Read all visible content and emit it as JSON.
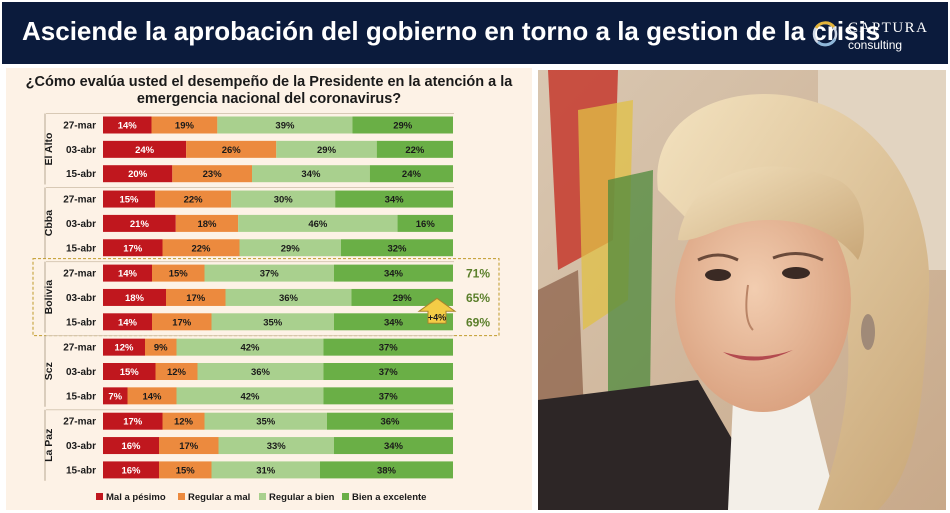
{
  "header": {
    "title": "Asciende la aprobación del gobierno en torno a la gestion de la crisis",
    "logo": {
      "line1": "CAPTURA",
      "line2": "consulting"
    }
  },
  "colors": {
    "header_bg": "#0b1b3c",
    "mal": "#c0171e",
    "regular_mal": "#ec8a3e",
    "regular_bien": "#a9d08e",
    "bien": "#6aaf46",
    "highlight_border": "#c09a2a",
    "approval_text": "#5b7f2b",
    "callout": "#f4cc46"
  },
  "chart_data": {
    "type": "bar",
    "stacked": true,
    "orientation": "horizontal",
    "percent_stacked": true,
    "title": "¿Cómo evalúa usted el desempeño de la Presidente en la atención a la emergencia nacional del coronavirus?",
    "legend_position": "bottom",
    "series_names": [
      "Mal a pésimo",
      "Regular a mal",
      "Regular a bien",
      "Bien a excelente"
    ],
    "groups": [
      {
        "name": "El Alto",
        "rows": [
          {
            "date": "27-mar",
            "values": [
              14,
              19,
              39,
              29
            ]
          },
          {
            "date": "03-abr",
            "values": [
              24,
              26,
              29,
              22
            ]
          },
          {
            "date": "15-abr",
            "values": [
              20,
              23,
              34,
              24
            ]
          }
        ]
      },
      {
        "name": "Cbba",
        "rows": [
          {
            "date": "27-mar",
            "values": [
              15,
              22,
              30,
              34
            ]
          },
          {
            "date": "03-abr",
            "values": [
              21,
              18,
              46,
              16
            ]
          },
          {
            "date": "15-abr",
            "values": [
              17,
              22,
              29,
              32
            ]
          }
        ]
      },
      {
        "name": "Bolivia",
        "highlight": true,
        "rows": [
          {
            "date": "27-mar",
            "values": [
              14,
              15,
              37,
              34
            ],
            "approval": "71%"
          },
          {
            "date": "03-abr",
            "values": [
              18,
              17,
              36,
              29
            ],
            "approval": "65%"
          },
          {
            "date": "15-abr",
            "values": [
              14,
              17,
              35,
              34
            ],
            "approval": "69%"
          }
        ]
      },
      {
        "name": "Scz",
        "rows": [
          {
            "date": "27-mar",
            "values": [
              12,
              9,
              42,
              37
            ]
          },
          {
            "date": "03-abr",
            "values": [
              15,
              12,
              36,
              37
            ]
          },
          {
            "date": "15-abr",
            "values": [
              7,
              14,
              42,
              37
            ]
          }
        ]
      },
      {
        "name": "La Paz",
        "rows": [
          {
            "date": "27-mar",
            "values": [
              17,
              12,
              35,
              36
            ]
          },
          {
            "date": "03-abr",
            "values": [
              16,
              17,
              33,
              34
            ]
          },
          {
            "date": "15-abr",
            "values": [
              16,
              15,
              31,
              38
            ]
          }
        ]
      }
    ],
    "annotations": [
      {
        "text": "+4%",
        "group": "Bolivia",
        "between": [
          "03-abr",
          "15-abr"
        ]
      }
    ]
  }
}
